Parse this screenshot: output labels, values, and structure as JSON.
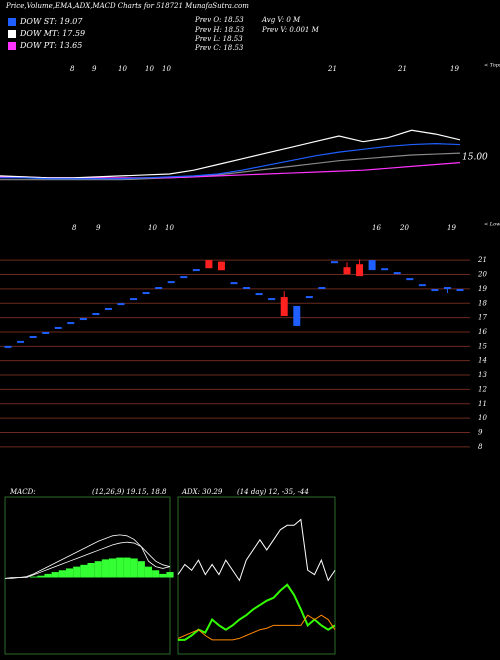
{
  "header": {
    "title": "Price,Volume,EMA,ADX,MACD Charts for 518721 MunafaSutra.com",
    "legend": [
      {
        "label": "DOW ST: 19.07",
        "color": "#1f5fff"
      },
      {
        "label": "DOW MT: 17.59",
        "color": "#ffffff"
      },
      {
        "label": "DOW PT: 13.65",
        "color": "#ff33ff"
      }
    ],
    "info": [
      "Prev  O: 18.53",
      "Prev  H: 18.53",
      "Prev  L: 18.53",
      "Prev  C: 18.53",
      "Avg V: 0  M",
      "Prev  V: 0.001 M"
    ]
  },
  "chart_data": [
    {
      "type": "line",
      "top_labels": [
        "8",
        "9",
        "10",
        "10",
        "10",
        "21",
        "21",
        "19"
      ],
      "top_note": "< Tops",
      "ylim": [
        10,
        20
      ],
      "yticks": [
        {
          "value": 15,
          "label": "15.00"
        }
      ],
      "series": [
        {
          "color": "#888888",
          "values": [
            13.7,
            13.7,
            13.7,
            13.7,
            13.7,
            13.7,
            13.75,
            13.8,
            13.85,
            13.95,
            14.1,
            14.25,
            14.4,
            14.55,
            14.7,
            14.8,
            14.9,
            15.0,
            15.05,
            15.1
          ]
        },
        {
          "color": "#ff33ff",
          "values": [
            13.85,
            13.85,
            13.8,
            13.8,
            13.8,
            13.8,
            13.8,
            13.8,
            13.85,
            13.9,
            13.95,
            14.0,
            14.05,
            14.1,
            14.15,
            14.2,
            14.3,
            14.4,
            14.5,
            14.6
          ]
        },
        {
          "color": "#ffffff",
          "values": [
            13.9,
            13.85,
            13.8,
            13.8,
            13.85,
            13.9,
            13.95,
            14.0,
            14.2,
            14.5,
            14.8,
            15.1,
            15.4,
            15.7,
            16.0,
            15.7,
            15.9,
            16.3,
            16.1,
            15.8
          ]
        },
        {
          "color": "#1f5fff",
          "values": [
            13.8,
            13.8,
            13.75,
            13.75,
            13.75,
            13.75,
            13.8,
            13.85,
            13.9,
            14.0,
            14.2,
            14.45,
            14.7,
            14.95,
            15.15,
            15.3,
            15.45,
            15.55,
            15.6,
            15.55
          ]
        }
      ]
    },
    {
      "type": "candlestick",
      "top_labels": [
        "8",
        "9",
        "10",
        "10",
        "16",
        "20",
        "19"
      ],
      "top_note": "< Lows",
      "ylim": [
        7.5,
        21.5
      ],
      "yticks": [
        21,
        20,
        19,
        18,
        17,
        16,
        15,
        14,
        13,
        12,
        11,
        10,
        9,
        8
      ],
      "grid": true,
      "grid_color": "#6b2a1e",
      "up_color": "#1f5fff",
      "down_color": "#ff2020",
      "open": [
        15.03,
        15.38,
        15.72,
        16.0,
        16.35,
        16.69,
        16.97,
        17.32,
        17.67,
        18.01,
        18.36,
        18.78,
        19.13,
        19.54,
        19.89,
        20.38,
        21.0,
        20.9,
        19.47,
        19.13,
        18.71,
        18.36,
        18.43,
        16.42,
        18.5,
        19.13,
        20.93,
        20.51,
        20.72,
        20.31,
        20.44,
        20.17,
        19.75,
        19.33,
        18.99,
        19.13,
        18.99
      ],
      "high": [
        15.03,
        15.38,
        15.72,
        16.0,
        16.35,
        16.69,
        16.97,
        17.32,
        17.67,
        18.01,
        18.36,
        18.78,
        19.13,
        19.54,
        19.89,
        20.38,
        21.0,
        20.9,
        19.47,
        19.13,
        18.71,
        18.36,
        18.85,
        17.81,
        18.5,
        19.13,
        20.93,
        20.86,
        21.05,
        21.0,
        20.44,
        20.17,
        19.75,
        19.33,
        18.99,
        19.13,
        18.99
      ],
      "low": [
        15.03,
        15.38,
        15.72,
        16.0,
        16.35,
        16.69,
        16.97,
        17.32,
        17.67,
        18.01,
        18.36,
        18.78,
        19.13,
        19.54,
        19.89,
        20.38,
        20.44,
        20.3,
        19.47,
        19.13,
        18.71,
        18.36,
        17.11,
        16.42,
        18.5,
        19.13,
        20.93,
        20.03,
        19.89,
        20.31,
        20.44,
        20.17,
        19.75,
        19.33,
        18.99,
        18.71,
        18.99
      ],
      "close": [
        15.03,
        15.38,
        15.72,
        16.0,
        16.35,
        16.69,
        16.97,
        17.32,
        17.67,
        18.01,
        18.36,
        18.78,
        19.13,
        19.54,
        19.89,
        20.38,
        20.44,
        20.3,
        19.47,
        19.13,
        18.71,
        18.36,
        17.11,
        17.81,
        18.5,
        19.13,
        20.93,
        20.03,
        19.89,
        21.0,
        20.44,
        20.17,
        19.75,
        19.33,
        18.99,
        19.13,
        18.99
      ]
    },
    {
      "type": "macd",
      "title": "MACD:",
      "subtitle": "(12,26,9) 19.15, 18.8",
      "ylim": [
        -4,
        4
      ],
      "hist_color": "#33ff33",
      "line_color": "#ffffff",
      "histogram": [
        0,
        0,
        0,
        0,
        0.05,
        0.1,
        0.2,
        0.3,
        0.4,
        0.5,
        0.6,
        0.7,
        0.8,
        0.9,
        1.0,
        1.05,
        1.1,
        1.1,
        1.05,
        0.9,
        0.6,
        0.4,
        0.2,
        0.3
      ],
      "series": [
        {
          "values": [
            -0.05,
            0,
            0,
            0.05,
            0.2,
            0.4,
            0.6,
            0.8,
            1.0,
            1.2,
            1.4,
            1.6,
            1.8,
            2.0,
            2.15,
            2.3,
            2.35,
            2.3,
            2.1,
            1.7,
            0.9,
            0.6,
            0.5,
            0.6
          ]
        },
        {
          "values": [
            -0.05,
            -0.05,
            0,
            0,
            0.15,
            0.3,
            0.45,
            0.6,
            0.75,
            0.9,
            1.05,
            1.2,
            1.35,
            1.5,
            1.65,
            1.8,
            1.9,
            1.95,
            1.9,
            1.7,
            1.3,
            0.9,
            0.7,
            0.6
          ]
        }
      ]
    },
    {
      "type": "adx",
      "title": "ADX: 30.29",
      "subtitle": "(14 day) 12, -35, -44",
      "ylim": [
        0,
        100
      ],
      "series": [
        {
          "color": "#ffffff",
          "values": [
            52,
            59,
            55,
            62,
            52,
            59,
            52,
            62,
            55,
            48,
            62,
            69,
            76,
            69,
            76,
            83,
            86,
            86,
            90,
            55,
            52,
            62,
            48,
            55
          ]
        },
        {
          "color": "#33ff00",
          "values": [
            7,
            7,
            10,
            14,
            12,
            21,
            17,
            14,
            17,
            21,
            24,
            28,
            31,
            34,
            36,
            41,
            45,
            38,
            28,
            17,
            21,
            17,
            14,
            17
          ]
        },
        {
          "color": "#ff8800",
          "values": [
            8,
            10,
            12,
            14,
            10,
            7,
            7,
            7,
            7,
            8,
            10,
            12,
            14,
            15,
            17,
            17,
            17,
            17,
            17,
            24,
            21,
            24,
            21,
            14
          ]
        }
      ]
    }
  ]
}
